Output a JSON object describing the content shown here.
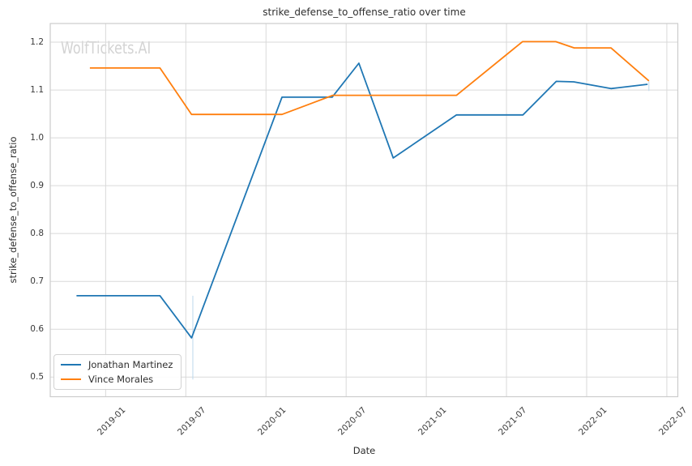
{
  "watermark": "WolfTickets.AI",
  "chart_data": {
    "type": "line",
    "title": "strike_defense_to_offense_ratio over time",
    "xlabel": "Date",
    "ylabel": "strike_defense_to_offense_ratio",
    "grid": true,
    "legend_position": "lower-left",
    "x_tick_labels": [
      "2019-01",
      "2019-07",
      "2020-01",
      "2020-07",
      "2021-01",
      "2021-07",
      "2022-01",
      "2022-07"
    ],
    "y_tick_labels": [
      "0.5",
      "0.6",
      "0.7",
      "0.8",
      "0.9",
      "1.0",
      "1.1",
      "1.2"
    ],
    "x_range": [
      "2018-08-27",
      "2022-07-26"
    ],
    "y_range": [
      0.459,
      1.239
    ],
    "series": [
      {
        "name": "Jonathan Martinez",
        "color": "#1f77b4",
        "points": [
          [
            "2018-10-26",
            0.67
          ],
          [
            "2019-05-03",
            0.67
          ],
          [
            "2019-07-14",
            0.582
          ],
          [
            "2020-02-07",
            1.085
          ],
          [
            "2020-05-30",
            1.085
          ],
          [
            "2020-07-30",
            1.156
          ],
          [
            "2020-10-17",
            0.958
          ],
          [
            "2021-03-09",
            1.048
          ],
          [
            "2021-08-08",
            1.048
          ],
          [
            "2021-10-23",
            1.118
          ],
          [
            "2021-12-02",
            1.117
          ],
          [
            "2022-02-26",
            1.103
          ],
          [
            "2022-05-18",
            1.112
          ]
        ]
      },
      {
        "name": "Vince Morales",
        "color": "#ff7f0e",
        "points": [
          [
            "2018-11-26",
            1.146
          ],
          [
            "2019-05-03",
            1.146
          ],
          [
            "2019-07-14",
            1.049
          ],
          [
            "2020-02-07",
            1.049
          ],
          [
            "2020-06-01",
            1.089
          ],
          [
            "2021-03-09",
            1.089
          ],
          [
            "2021-08-07",
            1.201
          ],
          [
            "2021-10-22",
            1.201
          ],
          [
            "2021-12-03",
            1.188
          ],
          [
            "2022-02-26",
            1.188
          ],
          [
            "2022-05-21",
            1.119
          ]
        ]
      }
    ],
    "faint_vlines": [
      {
        "x": "2019-07-17",
        "y_from": 0.67,
        "y_to": 0.495
      },
      {
        "x": "2022-05-21",
        "y_from": 1.118,
        "y_to": 1.098
      }
    ],
    "colors": {
      "grid": "#d9d9d9",
      "spine": "#cccccc",
      "text": "#2e2e2e",
      "watermark": "#d3d3d3",
      "faint_vline": "#bcd8ec"
    }
  }
}
